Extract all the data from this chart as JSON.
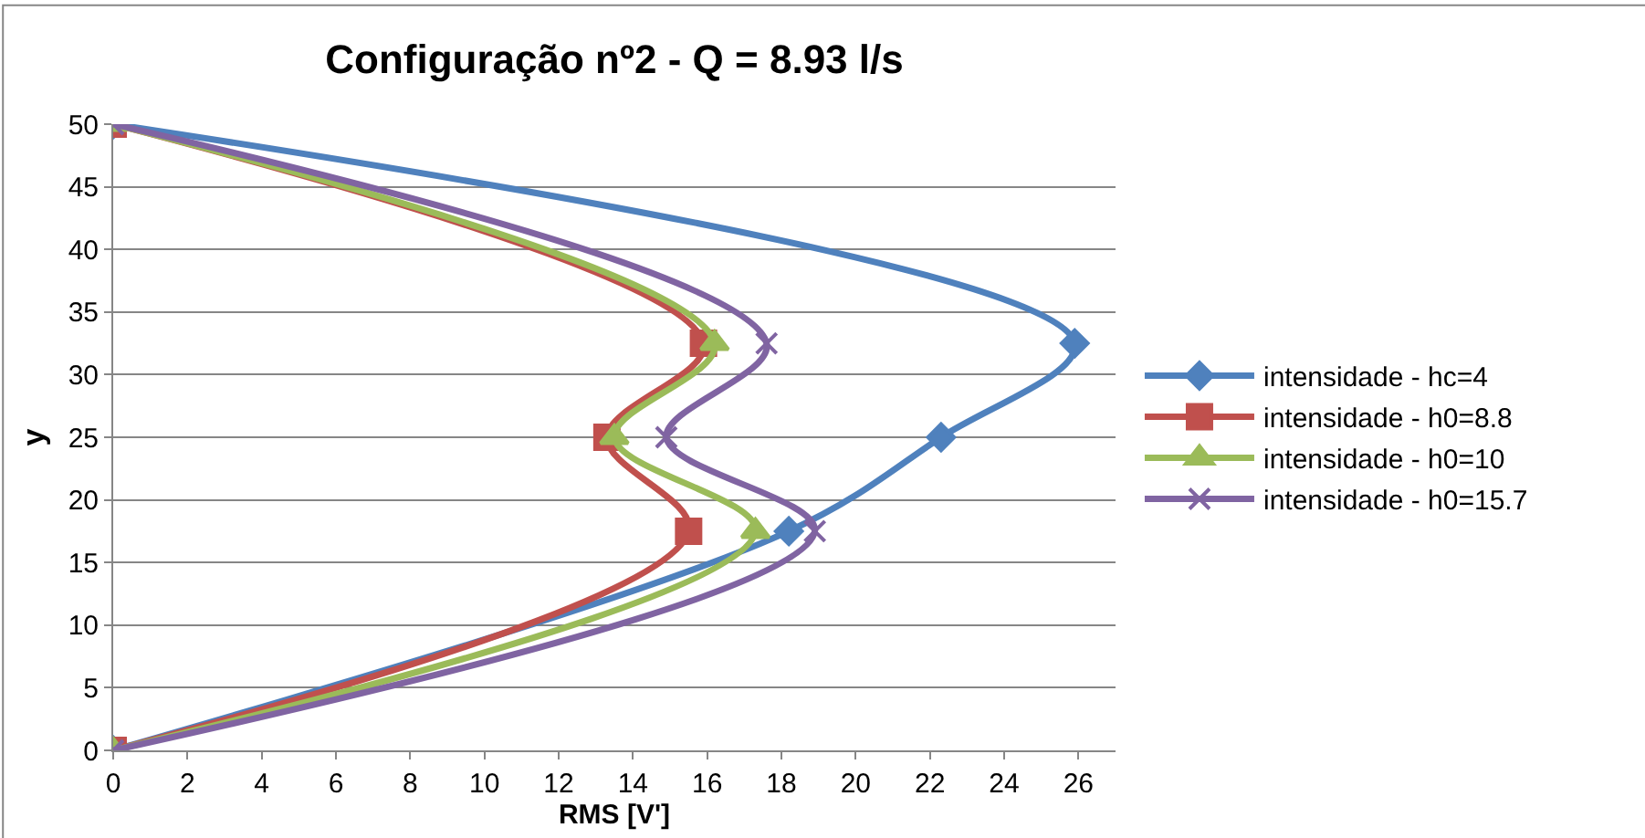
{
  "chart_data": {
    "type": "line",
    "title": "Configuração nº2 - Q = 8.93 l/s",
    "xlabel": "RMS [V']",
    "ylabel": "y",
    "xlim": [
      0,
      27
    ],
    "xticks": [
      0,
      2,
      4,
      6,
      8,
      10,
      12,
      14,
      16,
      18,
      20,
      22,
      24,
      26
    ],
    "ylim": [
      0,
      50
    ],
    "yticks": [
      0,
      5,
      10,
      15,
      20,
      25,
      30,
      35,
      40,
      45,
      50
    ],
    "grid": "y",
    "legend": "right",
    "line_style": "solid",
    "series": [
      {
        "name": "intensidade - hc=4",
        "color": "#4f81bd",
        "marker": "diamond",
        "x": [
          0,
          18.2,
          22.3,
          25.9,
          0
        ],
        "values": [
          0,
          17.5,
          25,
          32.5,
          50
        ]
      },
      {
        "name": "intensidade - h0=8.8",
        "color": "#c0504d",
        "marker": "square",
        "x": [
          0,
          15.5,
          13.3,
          15.9,
          0
        ],
        "values": [
          0,
          17.5,
          25,
          32.5,
          50
        ]
      },
      {
        "name": "intensidade - h0=10",
        "color": "#9bbb59",
        "marker": "triangle",
        "x": [
          0,
          17.3,
          13.5,
          16.2,
          0
        ],
        "values": [
          0,
          17.5,
          25,
          32.5,
          50
        ]
      },
      {
        "name": "intensidade - h0=15.7",
        "color": "#8064a2",
        "marker": "cross",
        "x": [
          0,
          18.9,
          14.9,
          17.6,
          0
        ],
        "values": [
          0,
          17.5,
          25,
          32.5,
          50
        ]
      }
    ]
  }
}
